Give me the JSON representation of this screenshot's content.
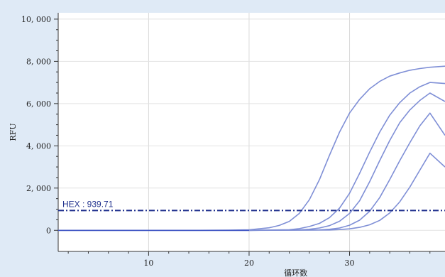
{
  "chart_data": {
    "type": "line",
    "ylabel": "RFU",
    "xlabel": "循环数",
    "xlim": [
      1,
      39.5
    ],
    "ylim": [
      -1000,
      10300
    ],
    "x_ticks": [
      10,
      20,
      30
    ],
    "y_ticks": [
      0,
      2000,
      4000,
      6000,
      8000,
      10000
    ],
    "y_tick_labels": [
      "0",
      "2, 000",
      "4, 000",
      "6, 000",
      "8, 000",
      "10, 000"
    ],
    "grid": true,
    "threshold": {
      "label": "HEX : 939.71",
      "value": 939.71
    },
    "line_color": "#7f8fd6",
    "threshold_color": "#1e2f8c",
    "series": [
      {
        "x": [
          1,
          5,
          10,
          15,
          18,
          20,
          22,
          23,
          24,
          25,
          26,
          27,
          28,
          29,
          30,
          31,
          32,
          33,
          34,
          35,
          36,
          37,
          38,
          39.5
        ],
        "values": [
          0,
          0,
          0,
          0,
          5,
          25,
          120,
          230,
          420,
          800,
          1450,
          2400,
          3550,
          4650,
          5550,
          6200,
          6700,
          7050,
          7300,
          7450,
          7580,
          7660,
          7720,
          7770
        ]
      },
      {
        "x": [
          1,
          10,
          20,
          24,
          25,
          26,
          27,
          28,
          29,
          30,
          31,
          32,
          33,
          34,
          35,
          36,
          37,
          38,
          39.5
        ],
        "values": [
          0,
          0,
          0,
          30,
          80,
          180,
          330,
          600,
          1050,
          1750,
          2700,
          3700,
          4650,
          5450,
          6050,
          6500,
          6800,
          7000,
          6950
        ]
      },
      {
        "x": [
          1,
          10,
          20,
          25,
          26,
          27,
          28,
          29,
          30,
          31,
          32,
          33,
          34,
          35,
          36,
          37,
          38,
          39.5
        ],
        "values": [
          0,
          0,
          0,
          20,
          50,
          110,
          220,
          430,
          800,
          1400,
          2300,
          3300,
          4250,
          5100,
          5700,
          6150,
          6500,
          6100
        ]
      },
      {
        "x": [
          1,
          10,
          20,
          27,
          28,
          29,
          30,
          31,
          32,
          33,
          34,
          35,
          36,
          37,
          38,
          39.5
        ],
        "values": [
          0,
          0,
          0,
          20,
          50,
          110,
          240,
          480,
          900,
          1550,
          2400,
          3300,
          4150,
          4950,
          5550,
          4500
        ]
      },
      {
        "x": [
          1,
          10,
          20,
          28,
          29,
          30,
          31,
          32,
          33,
          34,
          35,
          36,
          37,
          38,
          39.5
        ],
        "values": [
          0,
          0,
          0,
          15,
          35,
          70,
          140,
          260,
          470,
          820,
          1350,
          2050,
          2850,
          3650,
          3000
        ]
      }
    ]
  }
}
